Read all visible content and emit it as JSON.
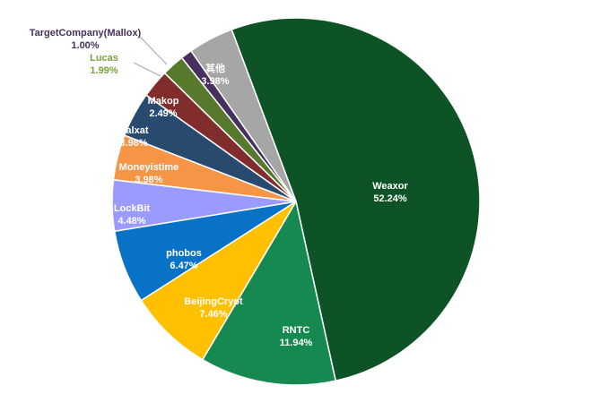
{
  "chart_data": {
    "type": "pie",
    "title": "",
    "series": [
      {
        "name": "Weaxor",
        "value": 52.24,
        "label": "52.24%",
        "color": "#0d5326",
        "text_color": "#ffffff"
      },
      {
        "name": "RNTC",
        "value": 11.94,
        "label": "11.94%",
        "color": "#168950",
        "text_color": "#ffffff"
      },
      {
        "name": "BeijingCrypt",
        "value": 7.46,
        "label": "7.46%",
        "color": "#fec000",
        "text_color": "#ffffff"
      },
      {
        "name": "phobos",
        "value": 6.47,
        "label": "6.47%",
        "color": "#0872c6",
        "text_color": "#ffffff"
      },
      {
        "name": "LockBit",
        "value": 4.48,
        "label": "4.48%",
        "color": "#9a9aff",
        "text_color": "#ffffff"
      },
      {
        "name": "Moneyistime",
        "value": 3.98,
        "label": "3.98%",
        "color": "#f69545",
        "text_color": "#ffffff"
      },
      {
        "name": "Kalxat",
        "value": 3.98,
        "label": "3.98%",
        "color": "#294a6f",
        "text_color": "#ffffff"
      },
      {
        "name": "Makop",
        "value": 2.49,
        "label": "2.49%",
        "color": "#822d2d",
        "text_color": "#ffffff"
      },
      {
        "name": "Lucas",
        "value": 1.99,
        "label": "1.99%",
        "color": "#58782d",
        "text_color": "#77a23a"
      },
      {
        "name": "TargetCompany(Mallox)",
        "value": 1.0,
        "label": "1.00%",
        "color": "#47305e",
        "text_color": "#47305e"
      },
      {
        "name": "其他",
        "value": 3.98,
        "label": "3.98%",
        "color": "#a6a6a6",
        "text_color": "#ffffff"
      }
    ]
  }
}
